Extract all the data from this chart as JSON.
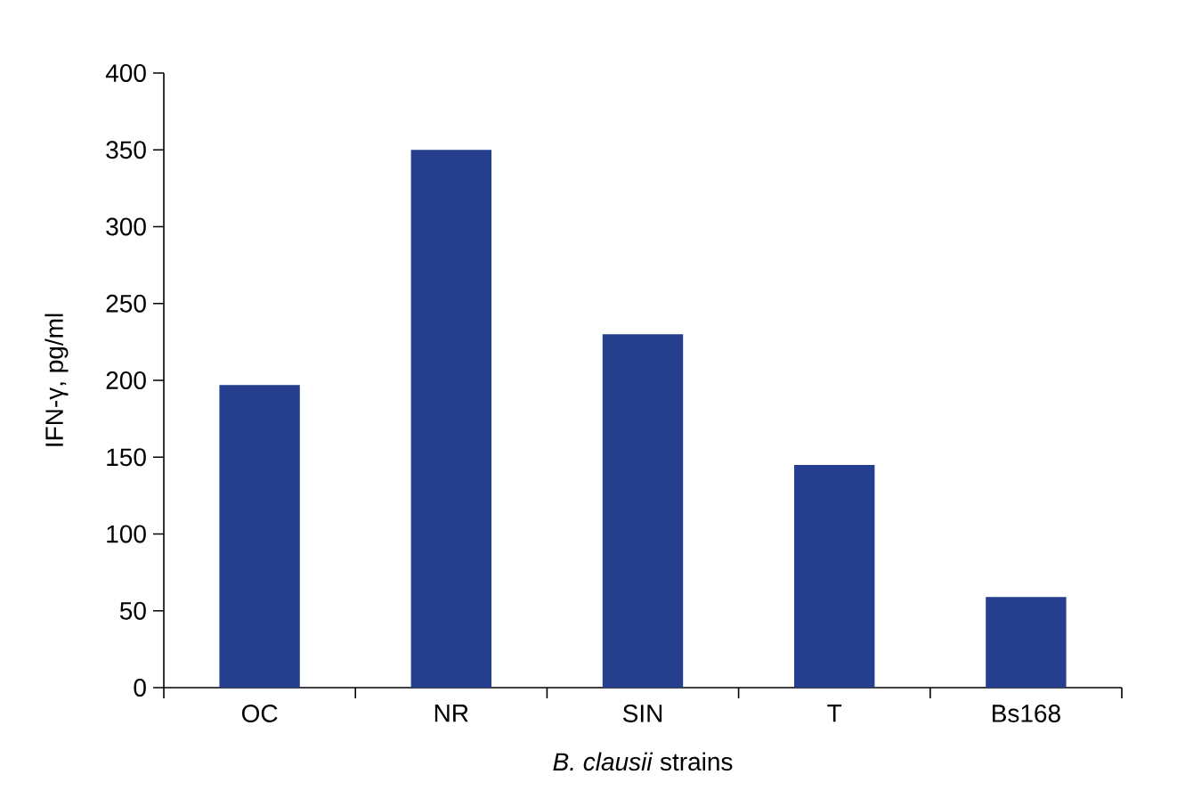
{
  "chart_data": {
    "type": "bar",
    "xlabel": "*B. clausii* strains",
    "ylabel": "IFN-γ, pg/ml",
    "categories": [
      "OC",
      "NR",
      "SIN",
      "T",
      "Bs168"
    ],
    "values": [
      197,
      350,
      230,
      145,
      59
    ],
    "color": "#253f8e",
    "ylim": [
      0,
      400
    ],
    "yticks": [
      0,
      50,
      100,
      150,
      200,
      250,
      300,
      350,
      400
    ]
  }
}
